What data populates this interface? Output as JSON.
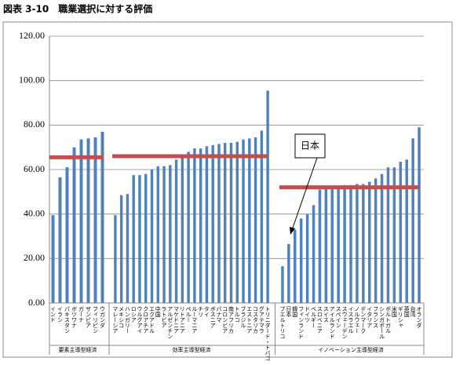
{
  "chart_data": {
    "type": "bar",
    "title": "図表 3-10　職業選択に対する評価",
    "annotation": "日本",
    "color": "#4f81bd",
    "average_color": "#c0504d",
    "ylim": [
      0,
      120
    ],
    "yticks": [
      {
        "value": 0,
        "label": "0.00"
      },
      {
        "value": 20,
        "label": "20.00"
      },
      {
        "value": 40,
        "label": "40.00"
      },
      {
        "value": 60,
        "label": "60.00"
      },
      {
        "value": 80,
        "label": "80.00"
      },
      {
        "value": 100,
        "label": "100.00"
      },
      {
        "value": 120,
        "label": "120.00"
      }
    ],
    "grid": true,
    "groups": [
      {
        "name": "要素主導型経済",
        "average": 65.5,
        "categories": [
          "インド",
          "イラン",
          "パキスタン",
          "ボツワナ",
          "ガーナ",
          "ザンビア",
          "フィリピン",
          "ウガンダ"
        ],
        "values": [
          39.5,
          56.5,
          61,
          70,
          73.5,
          74,
          74.5,
          77
        ]
      },
      {
        "name": "効率主導型経済",
        "average": 66,
        "categories": [
          "マレーシア",
          "メキシコ",
          "ハンガリー",
          "ロシア",
          "ウルグアイ",
          "クロアチア",
          "エクアドル",
          "中国",
          "ラトビア",
          "アルゼンチン",
          "マケドニア",
          "リトアニア",
          "ペルー",
          "ルーマニア",
          "チリ",
          "タイ",
          "ボスニア",
          "パナマ",
          "コロンビア",
          "南アフリカ",
          "トルコ",
          "ブラジル",
          "エストニア",
          "コスタリカ",
          "グアテマラ",
          "トリニダード・トバゴ"
        ],
        "values": [
          39.5,
          48.5,
          49,
          57.5,
          57.5,
          58,
          60,
          61.5,
          61.5,
          62,
          64.5,
          66,
          68,
          69.5,
          69.5,
          70.5,
          71,
          71.5,
          72,
          72,
          72.5,
          73.5,
          74,
          74.5,
          77.5,
          95.5
        ]
      },
      {
        "name": "イノベーション主導型経済",
        "average": 52,
        "categories": [
          "プエルトリコ",
          "日本",
          "韓国",
          "フィンランド",
          "ドイツ",
          "ベルギー",
          "スロベニア",
          "スイス",
          "アイルランド",
          "スペイン",
          "スウェーデン",
          "イスラエル",
          "ノルウェー",
          "デンマーク",
          "イタリア",
          "フランス",
          "シンガポール",
          "ポルトガル",
          "米国",
          "ギリシャ",
          "英国",
          "台湾",
          "オランダ"
        ],
        "values": [
          16.5,
          26.5,
          33,
          38,
          40,
          44,
          51,
          52,
          52,
          52.5,
          53,
          53,
          53.5,
          53.5,
          54.5,
          56,
          58,
          61,
          61,
          63.5,
          64.5,
          74,
          79
        ]
      }
    ]
  }
}
